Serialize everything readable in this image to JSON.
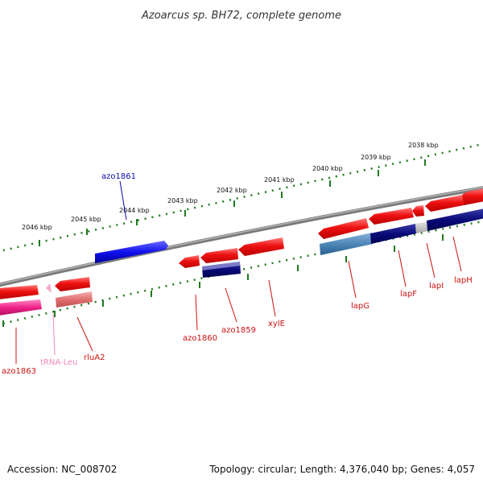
{
  "title": "Azoarcus sp. BH72, complete genome",
  "ruler_ticks": [
    "2038 kbp",
    "2039 kbp",
    "2040 kbp",
    "2041 kbp",
    "2042 kbp",
    "2043 kbp",
    "2044 kbp",
    "2045 kbp",
    "2046 kbp"
  ],
  "gene_labels": {
    "azo1861": "azo1861",
    "azo1863": "azo1863",
    "trna_leu": "tRNA-Leu",
    "rluA2": "rluA2",
    "azo1860": "azo1860",
    "azo1859": "azo1859",
    "xylE": "xylE",
    "lapG": "lapG",
    "lapF": "lapF",
    "lapI": "lapI",
    "lapH": "lapH"
  },
  "footer": {
    "accession": "Accession: NC_008702",
    "summary": "Topology: circular; Length: 4,376,040 bp; Genes: 4,057"
  },
  "colors": {
    "feature_red": "#ee1111",
    "feature_blue": "#1111ee",
    "feature_navy": "#0a0a78",
    "feature_steelblue": "#4d86b8",
    "feature_pink": "#ee2288",
    "tick_green": "#1f7a1f",
    "backbone_gray": "#808080"
  }
}
